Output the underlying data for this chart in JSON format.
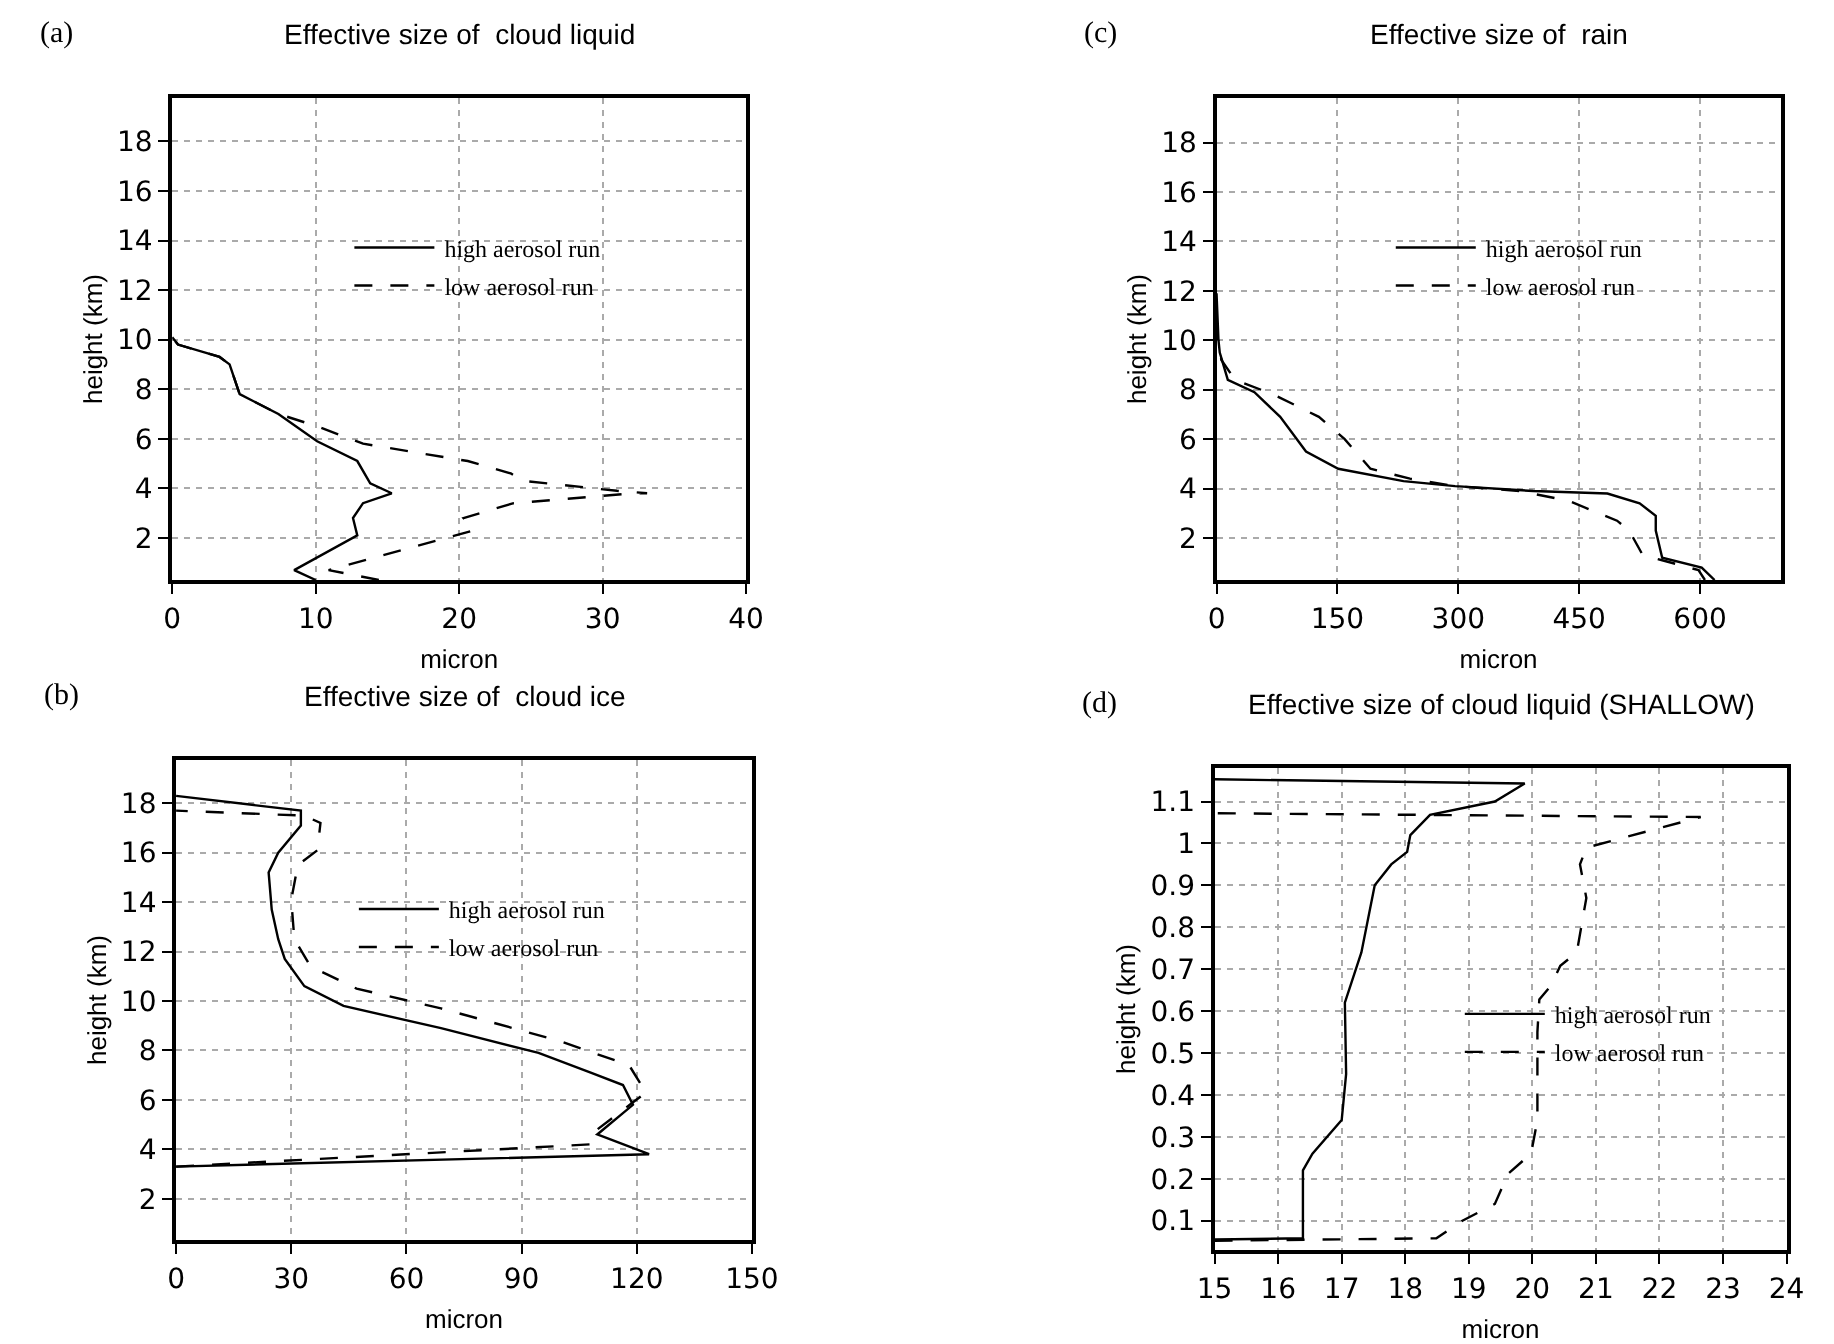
{
  "chart_data": [
    {
      "type": "line",
      "title": "Effective size of  cloud liquid",
      "xlabel": "micron",
      "ylabel": "height (km)",
      "annotations": [
        "(a)"
      ],
      "xlim": [
        0,
        40
      ],
      "xticks": [
        0,
        10,
        20,
        30,
        40
      ],
      "ylim": [
        0.3,
        19.75
      ],
      "yticks": [
        2,
        4,
        6,
        8,
        10,
        12,
        14,
        16,
        18
      ],
      "grid": true,
      "legend": "top right",
      "series": [
        {
          "name": "high aerosol run",
          "color": "#000000",
          "line_style": "solid",
          "x": [
            10.0,
            8.5,
            12.9,
            12.6,
            13.3,
            15.3,
            13.8,
            12.9,
            10.1,
            7.4,
            4.7,
            4.0,
            3.3,
            0.4,
            0
          ],
          "values": [
            0.3,
            0.7,
            2.1,
            2.8,
            3.4,
            3.8,
            4.2,
            5.1,
            5.9,
            7.0,
            7.8,
            9.0,
            9.3,
            9.8,
            10.1
          ]
        },
        {
          "name": "low aerosol run",
          "color": "#000000",
          "line_style": "dashed",
          "x": [
            14.4,
            10.9,
            21.0,
            20.3,
            23.8,
            32.2,
            33.1,
            31.0,
            24.5,
            23.6,
            20.6,
            13.3,
            10.1,
            7.4,
            4.7,
            4.0,
            3.3,
            0.4,
            0
          ],
          "values": [
            0.3,
            0.7,
            2.3,
            2.8,
            3.4,
            3.8,
            3.8,
            3.9,
            4.3,
            4.6,
            5.1,
            5.8,
            6.5,
            7.0,
            7.8,
            9.0,
            9.3,
            9.8,
            10.1
          ]
        }
      ]
    },
    {
      "type": "line",
      "title": "Effective size of  rain",
      "xlabel": "micron",
      "ylabel": "height (km)",
      "annotations": [
        "(c)"
      ],
      "xlim": [
        0,
        700
      ],
      "xticks": [
        0,
        150,
        300,
        450,
        600
      ],
      "ylim": [
        0.3,
        19.8
      ],
      "yticks": [
        2,
        4,
        6,
        8,
        10,
        12,
        14,
        16,
        18
      ],
      "grid": true,
      "legend": "top right",
      "series": [
        {
          "name": "high aerosol run",
          "color": "#000000",
          "line_style": "solid",
          "x": [
            618,
            602,
            553,
            545,
            545,
            525,
            485,
            393,
            296,
            232,
            151,
            111,
            79,
            47,
            14,
            4,
            2.4,
            0
          ],
          "values": [
            0.3,
            0.8,
            1.2,
            2.3,
            2.9,
            3.4,
            3.8,
            3.9,
            4.1,
            4.3,
            4.8,
            5.5,
            6.9,
            7.9,
            8.4,
            9.5,
            10.0,
            11.9
          ]
        },
        {
          "name": "low aerosol run",
          "color": "#000000",
          "line_style": "dashed",
          "x": [
            606,
            598,
            553,
            529,
            512,
            497,
            437,
            376,
            296,
            240,
            191,
            159,
            127,
            71,
            23,
            6,
            0
          ],
          "values": [
            0.3,
            0.7,
            1.1,
            1.3,
            2.3,
            2.7,
            3.5,
            3.9,
            4.1,
            4.4,
            4.8,
            6.0,
            6.9,
            7.8,
            8.4,
            9.2,
            10.3
          ]
        }
      ]
    },
    {
      "type": "line",
      "title": "Effective size of  cloud ice",
      "xlabel": "micron",
      "ylabel": "height (km)",
      "annotations": [
        "(b)"
      ],
      "xlim": [
        0,
        150
      ],
      "xticks": [
        0,
        30,
        60,
        90,
        120,
        150
      ],
      "ylim": [
        0.33,
        19.75
      ],
      "yticks": [
        2,
        4,
        6,
        8,
        10,
        12,
        14,
        16,
        18
      ],
      "grid": true,
      "legend": "top right",
      "series": [
        {
          "name": "high aerosol run",
          "color": "#000000",
          "line_style": "solid",
          "x": [
            0,
            123.2,
            109.7,
            119,
            116.4,
            108,
            94.4,
            69,
            43.6,
            33.4,
            28.3,
            26.6,
            24.9,
            24.1,
            26.6,
            32.5,
            32.5,
            0
          ],
          "values": [
            3.3,
            3.8,
            4.6,
            5.8,
            6.6,
            7.1,
            7.9,
            8.9,
            9.8,
            10.6,
            11.7,
            12.5,
            13.7,
            15.2,
            16.0,
            17.1,
            17.7,
            18.3
          ]
        },
        {
          "name": "low aerosol run",
          "color": "#000000",
          "line_style": "dashed",
          "x": [
            0,
            108,
            109.7,
            119,
            122.4,
            118,
            99.5,
            69,
            47,
            35,
            30.8,
            30,
            31.7,
            36.8,
            37.6,
            33.4,
            0
          ],
          "values": [
            3.3,
            4.2,
            4.8,
            5.9,
            6.3,
            7.4,
            8.4,
            9.7,
            10.5,
            11.4,
            12.5,
            14.1,
            15.5,
            16.1,
            17.2,
            17.5,
            17.7
          ]
        }
      ]
    },
    {
      "type": "line",
      "title": "Effective size of cloud liquid (SHALLOW)",
      "xlabel": "micron",
      "ylabel": "height (km)",
      "annotations": [
        "(d)"
      ],
      "xlim": [
        15,
        24
      ],
      "xticks": [
        15,
        16,
        17,
        18,
        19,
        20,
        21,
        22,
        23,
        24
      ],
      "ylim": [
        0.03,
        1.18
      ],
      "yticks": [
        0.1,
        0.2,
        0.3,
        0.4,
        0.5,
        0.6,
        0.7,
        0.8,
        0.9,
        1,
        1.1
      ],
      "grid": true,
      "legend": "right",
      "series": [
        {
          "name": "high aerosol run",
          "color": "#000000",
          "line_style": "solid",
          "x": [
            15,
            16.39,
            16.39,
            16.54,
            17.0,
            17.07,
            17.05,
            17.31,
            17.52,
            17.78,
            18.03,
            18.08,
            18.39,
            19.41,
            19.88,
            15
          ],
          "values": [
            0.055,
            0.058,
            0.22,
            0.26,
            0.34,
            0.45,
            0.62,
            0.74,
            0.9,
            0.95,
            0.98,
            1.02,
            1.068,
            1.1,
            1.143,
            1.153
          ]
        },
        {
          "name": "low aerosol run",
          "color": "#000000",
          "line_style": "dashed",
          "x": [
            15,
            18.49,
            18.9,
            19.41,
            19.62,
            19.98,
            20.08,
            20.08,
            20.11,
            20.29,
            20.44,
            20.7,
            20.85,
            20.75,
            20.85,
            22.65,
            15
          ],
          "values": [
            0.052,
            0.058,
            0.1,
            0.14,
            0.212,
            0.26,
            0.34,
            0.55,
            0.628,
            0.66,
            0.708,
            0.74,
            0.87,
            0.95,
            0.99,
            1.063,
            1.072
          ]
        }
      ]
    }
  ]
}
